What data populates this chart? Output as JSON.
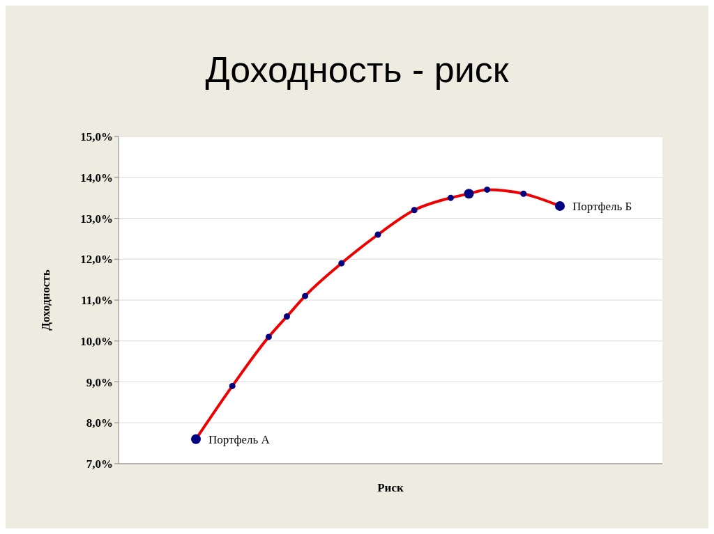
{
  "chart_data": {
    "type": "line",
    "title": "Доходность - риск",
    "xlabel": "Риск",
    "ylabel": "Доходность",
    "categories": [
      null,
      null,
      null,
      null,
      null,
      null,
      null,
      null,
      null,
      null,
      null,
      null,
      null,
      null,
      null,
      null,
      null,
      null,
      null,
      null,
      null
    ],
    "ylim": [
      7,
      15
    ],
    "yticks": [
      {
        "value": 7,
        "label": "7,0%"
      },
      {
        "value": 8,
        "label": "8,0%"
      },
      {
        "value": 9,
        "label": "9,0%"
      },
      {
        "value": 10,
        "label": "10,0%"
      },
      {
        "value": 11,
        "label": "11,0%"
      },
      {
        "value": 12,
        "label": "12,0%"
      },
      {
        "value": 13,
        "label": "13,0%"
      },
      {
        "value": 14,
        "label": "14,0%"
      },
      {
        "value": 15,
        "label": "15,0%"
      }
    ],
    "grid": "y",
    "marker": "circle",
    "line_style": "solid",
    "legend": false,
    "series": [
      {
        "color": "#ee0000",
        "values": [
          7.6,
          null,
          8.9,
          null,
          10.1,
          10.6,
          11.1,
          null,
          11.9,
          null,
          12.6,
          null,
          13.2,
          null,
          13.5,
          13.6,
          13.7,
          null,
          13.6,
          null,
          13.3
        ]
      },
      {
        "type": "scatter",
        "color": "#000080",
        "values": [
          7.6,
          null,
          null,
          null,
          null,
          null,
          null,
          null,
          null,
          null,
          null,
          null,
          null,
          null,
          null,
          13.6,
          null,
          null,
          null,
          null,
          13.3
        ],
        "value_labels": [
          "Портфель А",
          null,
          null,
          null,
          null,
          null,
          null,
          null,
          null,
          null,
          null,
          null,
          null,
          null,
          null,
          null,
          null,
          null,
          null,
          null,
          "Портфель Б"
        ]
      }
    ]
  }
}
